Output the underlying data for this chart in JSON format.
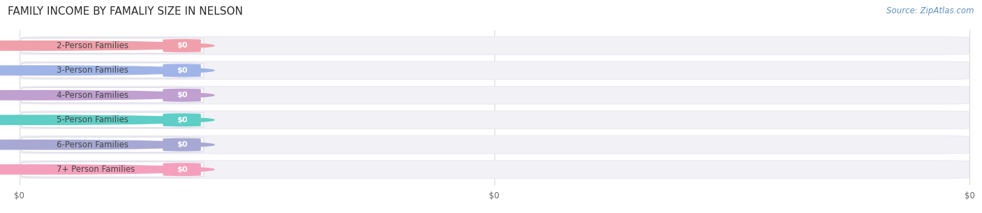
{
  "title": "FAMILY INCOME BY FAMALIY SIZE IN NELSON",
  "source": "Source: ZipAtlas.com",
  "categories": [
    "2-Person Families",
    "3-Person Families",
    "4-Person Families",
    "5-Person Families",
    "6-Person Families",
    "7+ Person Families"
  ],
  "values": [
    0,
    0,
    0,
    0,
    0,
    0
  ],
  "bar_colors": [
    "#f0a0aa",
    "#a0b4e8",
    "#c0a0d0",
    "#5ecec6",
    "#a8a8d4",
    "#f4a0bc"
  ],
  "dot_colors": [
    "#f0a0aa",
    "#a0b4e8",
    "#c0a0d0",
    "#5ecec6",
    "#a8a8d4",
    "#f4a0bc"
  ],
  "value_labels": [
    "$0",
    "$0",
    "$0",
    "$0",
    "$0",
    "$0"
  ],
  "background_color": "#ffffff",
  "bar_bg_color": "#f2f2f6",
  "bar_bg_edge_color": "#e4e4ec",
  "title_fontsize": 11,
  "source_fontsize": 8.5,
  "label_fontsize": 8.5,
  "value_fontsize": 8,
  "tick_fontsize": 8.5,
  "xtick_labels": [
    "$0",
    "$0",
    "$0"
  ],
  "xtick_positions": [
    0.0,
    0.5,
    1.0
  ],
  "xlim": [
    -0.005,
    1.005
  ],
  "n_bars": 6
}
